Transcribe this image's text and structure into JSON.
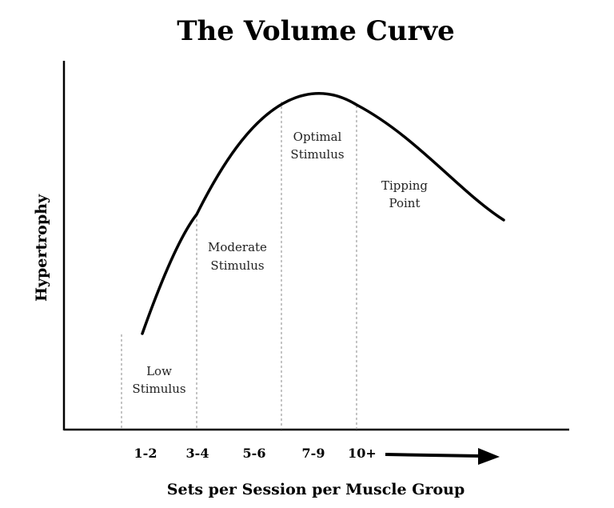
{
  "chart_data": {
    "type": "line",
    "title": "The Volume Curve",
    "xlabel": "Sets per Session per Muscle Group",
    "ylabel": "Hypertrophy",
    "categories": [
      "1-2",
      "3-4",
      "5-6",
      "7-9",
      "10+"
    ],
    "zones": [
      {
        "lines": [
          "Low",
          "Stimulus"
        ]
      },
      {
        "lines": [
          "Moderate",
          "Stimulus"
        ]
      },
      {
        "lines": [
          "Optimal",
          "Stimulus"
        ]
      },
      {
        "lines": [
          "Tipping",
          "Point"
        ]
      }
    ],
    "axis_color": "#000000",
    "curve_color": "#000000",
    "divider_color": "#888888"
  }
}
